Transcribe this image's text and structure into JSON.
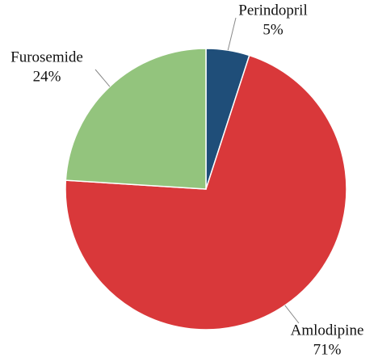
{
  "chart_data": {
    "type": "pie",
    "categories": [
      "Perindopril",
      "Amlodipine",
      "Furosemide"
    ],
    "values": [
      5,
      71,
      24
    ],
    "value_labels": [
      "5%",
      "71%",
      "24%"
    ],
    "colors": [
      "#1f4e79",
      "#d9383a",
      "#93c47d"
    ]
  }
}
